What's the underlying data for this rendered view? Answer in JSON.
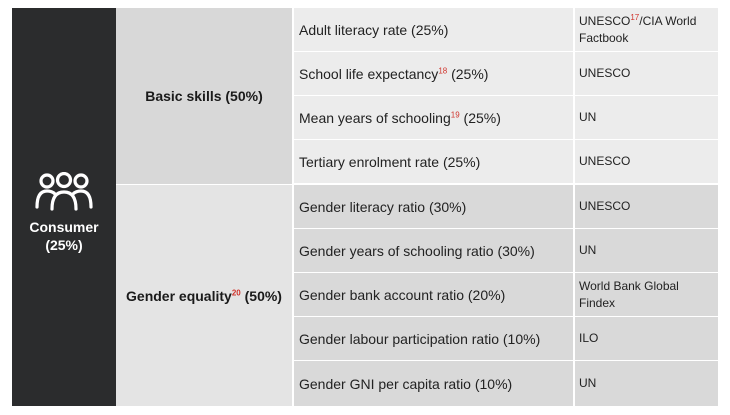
{
  "consumer": {
    "label_line1": "Consumer",
    "label_line2": "(25%)",
    "icon": "people-group-icon"
  },
  "groups": [
    {
      "label": "Basic skills (50%)"
    },
    {
      "label_pre": "Gender equality",
      "ref": "20",
      "label_post": " (50%)"
    }
  ],
  "rows": [
    {
      "indicator_pre": "Adult literacy rate (25%)",
      "ref": "",
      "indicator_post": "",
      "source_pre": "UNESCO",
      "source_ref": "17",
      "source_post": "/CIA World Factbook"
    },
    {
      "indicator_pre": "School life expectancy",
      "ref": "18",
      "indicator_post": " (25%)",
      "source_pre": "UNESCO",
      "source_ref": "",
      "source_post": ""
    },
    {
      "indicator_pre": "Mean years of schooling",
      "ref": "19",
      "indicator_post": " (25%)",
      "source_pre": "UN",
      "source_ref": "",
      "source_post": ""
    },
    {
      "indicator_pre": "Tertiary enrolment rate (25%)",
      "ref": "",
      "indicator_post": "",
      "source_pre": "UNESCO",
      "source_ref": "",
      "source_post": ""
    },
    {
      "indicator_pre": "Gender literacy ratio (30%)",
      "ref": "",
      "indicator_post": "",
      "source_pre": "UNESCO",
      "source_ref": "",
      "source_post": ""
    },
    {
      "indicator_pre": "Gender years of schooling ratio (30%)",
      "ref": "",
      "indicator_post": "",
      "source_pre": "UN",
      "source_ref": "",
      "source_post": ""
    },
    {
      "indicator_pre": "Gender bank account ratio (20%)",
      "ref": "",
      "indicator_post": "",
      "source_pre": "World Bank Global Findex",
      "source_ref": "",
      "source_post": ""
    },
    {
      "indicator_pre": "Gender labour participation ratio (10%)",
      "ref": "",
      "indicator_post": "",
      "source_pre": "ILO",
      "source_ref": "",
      "source_post": ""
    },
    {
      "indicator_pre": "Gender GNI per capita ratio (10%)",
      "ref": "",
      "indicator_post": "",
      "source_pre": "UN",
      "source_ref": "",
      "source_post": ""
    }
  ],
  "colors": {
    "dark_panel": "#2b2c2d",
    "footnote_ref": "#d0342c"
  }
}
